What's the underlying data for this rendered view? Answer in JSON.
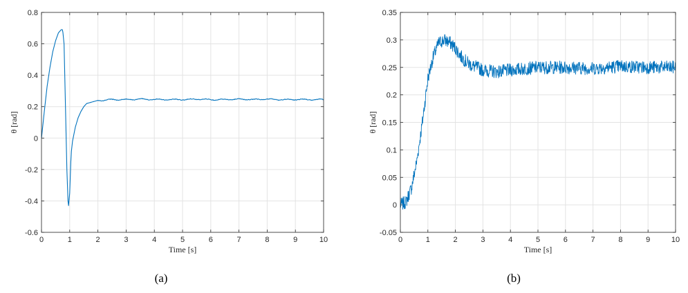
{
  "captions": [
    "(a)",
    "(b)"
  ],
  "chart_data": [
    {
      "type": "line",
      "xlabel": "Time [s]",
      "ylabel": "θ [rad]",
      "xlim": [
        0,
        10
      ],
      "ylim": [
        -0.6,
        0.8
      ],
      "xticks": [
        "0",
        "1",
        "2",
        "3",
        "4",
        "5",
        "6",
        "7",
        "8",
        "9",
        "10"
      ],
      "yticks": [
        "-0.6",
        "-0.4",
        "-0.2",
        "0",
        "0.2",
        "0.4",
        "0.6",
        "0.8"
      ],
      "grid": true,
      "color": "#0072BD",
      "series": [
        {
          "x": [
            0,
            0.1,
            0.2,
            0.3,
            0.4,
            0.5,
            0.6,
            0.7,
            0.75,
            0.8,
            0.85,
            0.9,
            0.95,
            1.0,
            1.05,
            1.1,
            1.2,
            1.3,
            1.4,
            1.5,
            1.6,
            1.7,
            1.8,
            1.9,
            2.0,
            2.2,
            2.4,
            2.6,
            2.8,
            3.0,
            3.5,
            4.0,
            4.5,
            5.0,
            5.5,
            6.0,
            6.5,
            7.0,
            7.5,
            8.0,
            8.5,
            9.0,
            9.5,
            10.0
          ],
          "y": [
            0,
            0.17,
            0.33,
            0.45,
            0.55,
            0.62,
            0.67,
            0.69,
            0.69,
            0.6,
            0.2,
            -0.2,
            -0.45,
            -0.35,
            -0.1,
            -0.02,
            0.07,
            0.13,
            0.17,
            0.2,
            0.22,
            0.225,
            0.23,
            0.235,
            0.24,
            0.24,
            0.245,
            0.245,
            0.245,
            0.245,
            0.248,
            0.246,
            0.245,
            0.245,
            0.248,
            0.245,
            0.245,
            0.248,
            0.245,
            0.248,
            0.244,
            0.246,
            0.245,
            0.245
          ]
        }
      ]
    },
    {
      "type": "line",
      "xlabel": "Time [s]",
      "ylabel": "θ [rad]",
      "xlim": [
        0,
        10
      ],
      "ylim": [
        -0.05,
        0.35
      ],
      "xticks": [
        "0",
        "1",
        "2",
        "3",
        "4",
        "5",
        "6",
        "7",
        "8",
        "9",
        "10"
      ],
      "yticks": [
        "-0.05",
        "0",
        "0.05",
        "0.1",
        "0.15",
        "0.2",
        "0.25",
        "0.3",
        "0.35"
      ],
      "grid": true,
      "color": "#0072BD",
      "noisy": true,
      "noise_amplitude": 0.012,
      "series": [
        {
          "x": [
            0,
            0.2,
            0.4,
            0.6,
            0.8,
            1.0,
            1.2,
            1.4,
            1.6,
            1.8,
            2.0,
            2.2,
            2.4,
            2.6,
            2.8,
            3.0,
            3.5,
            4.0,
            5.0,
            6.0,
            7.0,
            8.0,
            9.0,
            10.0
          ],
          "y": [
            0,
            0.005,
            0.03,
            0.08,
            0.15,
            0.23,
            0.27,
            0.295,
            0.3,
            0.295,
            0.285,
            0.27,
            0.26,
            0.253,
            0.25,
            0.245,
            0.242,
            0.245,
            0.25,
            0.25,
            0.248,
            0.252,
            0.25,
            0.25
          ]
        }
      ]
    }
  ]
}
